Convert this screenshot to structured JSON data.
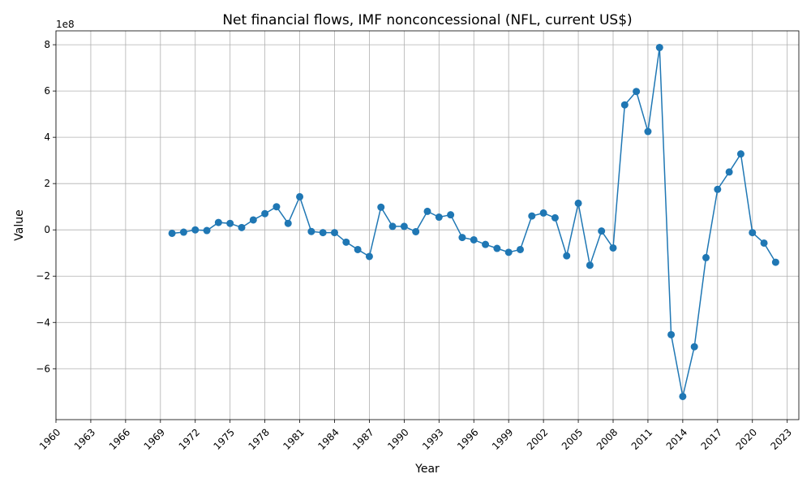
{
  "chart_data": {
    "type": "line",
    "title": "Net financial flows, IMF nonconcessional (NFL, current US$)",
    "xlabel": "Year",
    "ylabel": "Value",
    "y_offset_label": "1e8",
    "xlim": [
      1960,
      2024
    ],
    "ylim": [
      -8.2,
      8.6
    ],
    "x_ticks": [
      1960,
      1963,
      1966,
      1969,
      1972,
      1975,
      1978,
      1981,
      1984,
      1987,
      1990,
      1993,
      1996,
      1999,
      2002,
      2005,
      2008,
      2011,
      2014,
      2017,
      2020,
      2023
    ],
    "y_ticks": [
      -6,
      -4,
      -2,
      0,
      2,
      4,
      6,
      8
    ],
    "grid": true,
    "color": "#1f77b4",
    "series": [
      {
        "name": "Net financial flows",
        "x": [
          1970,
          1971,
          1972,
          1973,
          1974,
          1975,
          1976,
          1977,
          1978,
          1979,
          1980,
          1981,
          1982,
          1983,
          1984,
          1985,
          1986,
          1987,
          1988,
          1989,
          1990,
          1991,
          1992,
          1993,
          1994,
          1995,
          1996,
          1997,
          1998,
          1999,
          2000,
          2001,
          2002,
          2003,
          2004,
          2005,
          2006,
          2007,
          2008,
          2009,
          2010,
          2011,
          2012,
          2013,
          2014,
          2015,
          2016,
          2017,
          2018,
          2019,
          2020,
          2021,
          2022
        ],
        "values": [
          -0.15,
          -0.1,
          0.0,
          -0.03,
          0.32,
          0.28,
          0.1,
          0.43,
          0.7,
          1.0,
          0.28,
          1.43,
          -0.07,
          -0.12,
          -0.12,
          -0.53,
          -0.85,
          -1.15,
          0.98,
          0.15,
          0.15,
          -0.08,
          0.8,
          0.55,
          0.65,
          -0.33,
          -0.43,
          -0.63,
          -0.8,
          -0.97,
          -0.85,
          0.6,
          0.73,
          0.52,
          -1.12,
          1.15,
          -1.53,
          -0.05,
          -0.78,
          5.4,
          5.98,
          4.25,
          7.88,
          -4.53,
          -7.2,
          -5.05,
          -1.2,
          1.75,
          2.5,
          3.28,
          -0.12,
          -0.57,
          -1.4
        ]
      }
    ]
  }
}
